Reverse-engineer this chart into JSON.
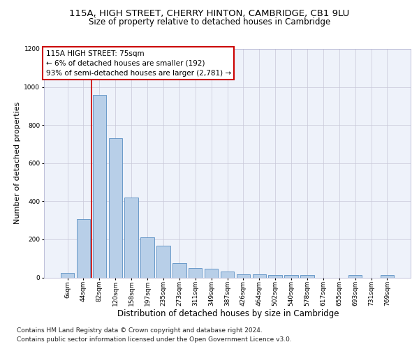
{
  "title1": "115A, HIGH STREET, CHERRY HINTON, CAMBRIDGE, CB1 9LU",
  "title2": "Size of property relative to detached houses in Cambridge",
  "xlabel": "Distribution of detached houses by size in Cambridge",
  "ylabel": "Number of detached properties",
  "bar_labels": [
    "6sqm",
    "44sqm",
    "82sqm",
    "120sqm",
    "158sqm",
    "197sqm",
    "235sqm",
    "273sqm",
    "311sqm",
    "349sqm",
    "387sqm",
    "426sqm",
    "464sqm",
    "502sqm",
    "540sqm",
    "578sqm",
    "617sqm",
    "655sqm",
    "693sqm",
    "731sqm",
    "769sqm"
  ],
  "bar_heights": [
    25,
    305,
    960,
    730,
    420,
    210,
    165,
    75,
    48,
    45,
    30,
    18,
    15,
    13,
    13,
    12,
    0,
    0,
    13,
    0,
    13
  ],
  "bar_color": "#b8cfe8",
  "bar_edge_color": "#5a8fc3",
  "annotation_text": "115A HIGH STREET: 75sqm\n← 6% of detached houses are smaller (192)\n93% of semi-detached houses are larger (2,781) →",
  "annotation_box_facecolor": "#ffffff",
  "annotation_box_edgecolor": "#cc0000",
  "vline_x": 1.5,
  "vline_color": "#cc0000",
  "ylim": [
    0,
    1200
  ],
  "yticks": [
    0,
    200,
    400,
    600,
    800,
    1000,
    1200
  ],
  "bg_color": "#eef2fa",
  "grid_color": "#c8c8d8",
  "title1_fontsize": 9.5,
  "title2_fontsize": 8.5,
  "ylabel_fontsize": 8,
  "xlabel_fontsize": 8.5,
  "tick_fontsize": 6.5,
  "annot_fontsize": 7.5,
  "footnote_fontsize": 6.5,
  "footnote1": "Contains HM Land Registry data © Crown copyright and database right 2024.",
  "footnote2": "Contains public sector information licensed under the Open Government Licence v3.0."
}
